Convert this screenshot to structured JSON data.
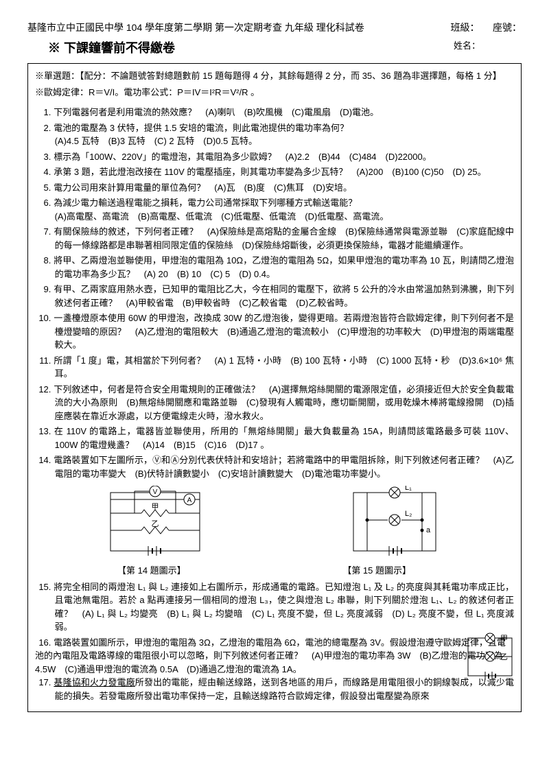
{
  "header": {
    "title": "基隆市立中正國民中學 104 學年度第二學期 第一次定期考查 九年級 理化科試卷",
    "class_label": "班級：",
    "seat_label": "座號："
  },
  "notice_prefix": "※",
  "notice": "下課鐘響前不得繳卷",
  "name_label": "姓名：",
  "scoring": "※單選題：【配分：不論題號答對總題數前 15 題每題得 4 分，其餘每題得 2 分，而 35、36 題為非選擇題，每格 1 分】",
  "formula": "※歐姆定律：R＝V/I。電功率公式：P＝IV＝I²R＝V²/R 。",
  "questions": [
    "下列電器何者是利用電流的熱效應？　(A)喇叭　(B)吹風機　(C)電風扇　(D)電池。",
    "電池的電壓為 3 伏特，提供 1.5 安培的電流，則此電池提供的電功率為何？\n(A)4.5 瓦特　(B)3 瓦特　(C) 2 瓦特　(D)0.5 瓦特。",
    "標示為「100W、220V」的電燈泡，其電阻為多少歐姆？　(A)2.2　(B)44　(C)484　(D)22000。",
    "承第 3 題，若此燈泡改接在 110V 的電壓插座，則其電功率變為多少瓦特？　(A)200　(B)100 (C)50　(D) 25。",
    "電力公司用來計算用電量的單位為何？　(A)瓦　(B)度　(C)焦耳　(D)安培。",
    "為減少電力輸送過程電能之損耗，電力公司通常採取下列哪種方式輸送電能？\n(A)高電壓、高電流　(B)高電壓、低電流　(C)低電壓、低電流　(D)低電壓、高電流。",
    "有關保險絲的敘述，下列何者正確？　(A)保險絲是高熔點的金屬合金線　(B)保險絲通常與電源並聯　(C)家庭配線中的每一條線路都是串聯著相同限定值的保險絲　(D)保險絲熔斷後，必須更換保險絲，電器才能繼續運作。",
    "將甲、乙兩燈泡並聯使用，甲燈泡的電阻為 10Ω，乙燈泡的電阻為 5Ω，如果甲燈泡的電功率為 10 瓦，則請問乙燈泡的電功率為多少瓦？　(A) 20　(B) 10　(C) 5　(D) 0.4。",
    "有甲、乙兩家庭用熱水壺，已知甲的電阻比乙大，今在相同的電壓下，欲將 5 公升的冷水由常溫加熱到沸騰，則下列敘述何者正確？　(A)甲較省電　(B)甲較省時　(C)乙較省電　(D)乙較省時。",
    "一盞檯燈原本使用 60W 的甲燈泡，改換成 30W 的乙燈泡後，變得更暗。若兩燈泡皆符合歐姆定律，則下列何者不是檯燈變暗的原因？　(A)乙燈泡的電阻較大　(B)通過乙燈泡的電流較小　(C)甲燈泡的功率較大　(D)甲燈泡的兩端電壓較大。",
    "所謂「1 度」電，其相當於下列何者？　(A) 1 瓦特‧小時　(B) 100 瓦特‧小時　(C) 1000 瓦特‧秒　(D)3.6×10⁶ 焦耳。",
    "下列敘述中，何者是符合安全用電規則的正確做法？　(A)選擇無熔絲開關的電源限定值，必須接近但大於安全負載電流的大小為原則　(B)無熔絲開關應和電路並聯　(C)發現有人觸電時，應切斷開關，或用乾燥木棒將電線撥開　(D)插座應裝在靠近水源處，以方便電線走火時，潑水救火。",
    "在 110V 的電路上，電器皆並聯使用，所用的「無熔絲開關」最大負載量為 15A，則請問該電路最多可裝 110V、100W 的電燈幾盞？　(A)14　(B)15　(C)16　(D)17 。",
    "電路裝置如下左圖所示，Ⓥ和Ⓐ分別代表伏特計和安培計；若將電路中的甲電阻拆除，則下列敘述何者正確？　(A)乙電阻的電功率變大　(B)伏特計讀數變小　(C)安培計讀數變大　(D)電池電功率變小。",
    "將完全相同的兩燈泡 L₁ 與 L₂ 連接如上右圖所示，形成通電的電路。已知燈泡 L₁ 及 L₂ 的亮度與其耗電功率成正比，且電池無電阻。若於 a 點再連接另一個相同的燈泡 L₃，使之與燈泡 L₂ 串聯，則下列關於燈泡 L₁、L₂ 的敘述何者正確？　(A) L₁ 與 L₂ 均變亮　(B) L₁ 與 L₂ 均變暗　(C) L₁ 亮度不變，但 L₂ 亮度減弱　(D) L₂ 亮度不變，但 L₁ 亮度減弱。",
    "電路裝置如圖所示，甲燈泡的電阻為 3Ω，乙燈泡的電阻為 6Ω，電池的總電壓為 3V。假設燈泡遵守歐姆定律，且電池的內電阻及電路導線的電阻很小可以忽略，則下列敘述何者正確？　(A)甲燈泡的電功率為 3W　(B)乙燈泡的電功率為 4.5W　(C)通過甲燈泡的電流為 0.5A　(D)通過乙燈泡的電流為 1A。",
    "基隆協和火力發電廠所發出的電能，經由輸送線路，送到各地區的用戶，而線路是用電阻很小的銅線製成，以減少電能的損失。若發電廠所發出電功率保持一定，且輸送線路符合歐姆定律，假設發出電壓變為原來"
  ],
  "captions": {
    "q14": "【第 14 題圖示】",
    "q15": "【第 15 題圖示】"
  }
}
